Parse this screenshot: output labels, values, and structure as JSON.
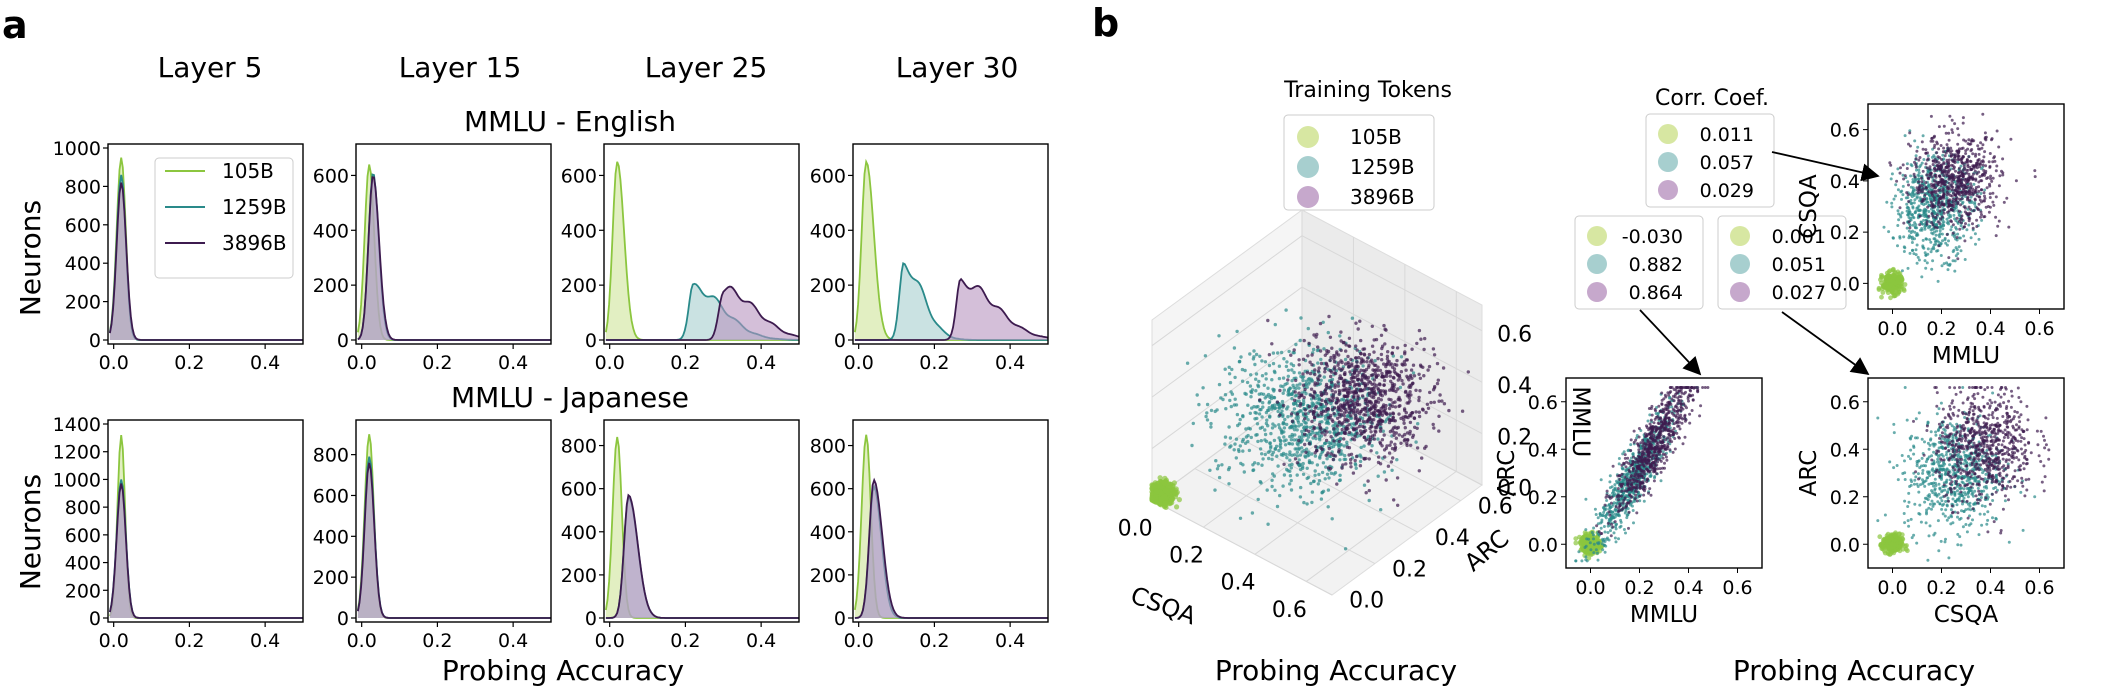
{
  "panels": {
    "a": "a",
    "b": "b"
  },
  "colors": {
    "s105": "#8cc63f",
    "s1259": "#2a8a8a",
    "s3896": "#3d1b4f",
    "f105": "#cfe59a",
    "f1259": "#a7cfcf",
    "f3896": "#b895bf"
  },
  "chart_data": [
    {
      "type": "area",
      "title": "MMLU - English",
      "column_titles": [
        "Layer 5",
        "Layer 15",
        "Layer 25",
        "Layer 30"
      ],
      "ylabel": "Neurons",
      "xlabel": "Probing Accuracy",
      "xlim": [
        0,
        0.5
      ],
      "xticks": [
        "0.0",
        "0.2",
        "0.4"
      ],
      "legend": [
        "105B",
        "1259B",
        "3896B"
      ],
      "legend_position": "upper right of Layer 5 subplot",
      "subplots": [
        {
          "layer": "Layer 5",
          "ylim": [
            0,
            1000
          ],
          "yticks": [
            "0",
            "200",
            "400",
            "600",
            "800",
            "1000"
          ],
          "series": [
            {
              "name": "105B",
              "peak_x": 0.02,
              "peak_y": 950,
              "width": 0.012
            },
            {
              "name": "1259B",
              "peak_x": 0.02,
              "peak_y": 860,
              "width": 0.012
            },
            {
              "name": "3896B",
              "peak_x": 0.02,
              "peak_y": 820,
              "width": 0.013
            }
          ]
        },
        {
          "layer": "Layer 15",
          "ylim": [
            0,
            700
          ],
          "yticks": [
            "0",
            "200",
            "400",
            "600"
          ],
          "series": [
            {
              "name": "105B",
              "peak_x": 0.02,
              "peak_y": 640,
              "width": 0.013
            },
            {
              "name": "1259B",
              "peak_x": 0.03,
              "peak_y": 610,
              "width": 0.015
            },
            {
              "name": "3896B",
              "peak_x": 0.03,
              "peak_y": 600,
              "width": 0.016
            }
          ]
        },
        {
          "layer": "Layer 25",
          "ylim": [
            0,
            700
          ],
          "yticks": [
            "0",
            "200",
            "400",
            "600"
          ],
          "series": [
            {
              "name": "105B",
              "peak_x": 0.02,
              "peak_y": 650,
              "width": 0.018
            },
            {
              "name": "1259B",
              "peak_x": 0.22,
              "peak_y": 190,
              "width": 0.08
            },
            {
              "name": "3896B",
              "peak_x": 0.3,
              "peak_y": 185,
              "width": 0.085
            }
          ]
        },
        {
          "layer": "Layer 30",
          "ylim": [
            0,
            700
          ],
          "yticks": [
            "0",
            "200",
            "400",
            "600"
          ],
          "series": [
            {
              "name": "105B",
              "peak_x": 0.02,
              "peak_y": 650,
              "width": 0.02
            },
            {
              "name": "1259B",
              "peak_x": 0.12,
              "peak_y": 270,
              "width": 0.05
            },
            {
              "name": "3896B",
              "peak_x": 0.27,
              "peak_y": 210,
              "width": 0.09
            }
          ]
        }
      ]
    },
    {
      "type": "area",
      "title": "MMLU - Japanese",
      "ylabel": "Neurons",
      "xlabel": "Probing Accuracy",
      "xlim": [
        0,
        0.5
      ],
      "xticks": [
        "0.0",
        "0.2",
        "0.4"
      ],
      "subplots": [
        {
          "layer": "Layer 5",
          "ylim": [
            0,
            1400
          ],
          "yticks": [
            "0",
            "200",
            "400",
            "600",
            "800",
            "1000",
            "1200",
            "1400"
          ],
          "series": [
            {
              "name": "105B",
              "peak_x": 0.02,
              "peak_y": 1320,
              "width": 0.01
            },
            {
              "name": "1259B",
              "peak_x": 0.02,
              "peak_y": 1000,
              "width": 0.012
            },
            {
              "name": "3896B",
              "peak_x": 0.02,
              "peak_y": 970,
              "width": 0.012
            }
          ]
        },
        {
          "layer": "Layer 15",
          "ylim": [
            0,
            950
          ],
          "yticks": [
            "0",
            "200",
            "400",
            "600",
            "800"
          ],
          "series": [
            {
              "name": "105B",
              "peak_x": 0.02,
              "peak_y": 900,
              "width": 0.012
            },
            {
              "name": "1259B",
              "peak_x": 0.02,
              "peak_y": 790,
              "width": 0.013
            },
            {
              "name": "3896B",
              "peak_x": 0.02,
              "peak_y": 760,
              "width": 0.013
            }
          ]
        },
        {
          "layer": "Layer 25",
          "ylim": [
            0,
            900
          ],
          "yticks": [
            "0",
            "200",
            "400",
            "600",
            "800"
          ],
          "series": [
            {
              "name": "105B",
              "peak_x": 0.02,
              "peak_y": 840,
              "width": 0.012
            },
            {
              "name": "1259B",
              "peak_x": 0.05,
              "peak_y": 560,
              "width": 0.024
            },
            {
              "name": "3896B",
              "peak_x": 0.05,
              "peak_y": 570,
              "width": 0.024
            }
          ]
        },
        {
          "layer": "Layer 30",
          "ylim": [
            0,
            900
          ],
          "yticks": [
            "0",
            "200",
            "400",
            "600",
            "800"
          ],
          "series": [
            {
              "name": "105B",
              "peak_x": 0.02,
              "peak_y": 850,
              "width": 0.012
            },
            {
              "name": "1259B",
              "peak_x": 0.04,
              "peak_y": 610,
              "width": 0.02
            },
            {
              "name": "3896B",
              "peak_x": 0.04,
              "peak_y": 640,
              "width": 0.022
            }
          ]
        }
      ]
    },
    {
      "type": "scatter",
      "subtype": "3d",
      "legend_title": "Training Tokens",
      "legend": [
        "105B",
        "1259B",
        "3896B"
      ],
      "axes": {
        "x": "CSQA",
        "y": "ARC",
        "z": "MMLU"
      },
      "xticks": [
        "0.0",
        "0.2",
        "0.4",
        "0.6"
      ],
      "yticks": [
        "0.0",
        "0.2",
        "0.4",
        "0.6"
      ],
      "zticks": [
        "0.0",
        "0.2",
        "0.4",
        "0.6"
      ],
      "xlabel": "Probing Accuracy",
      "clusters": [
        {
          "name": "105B",
          "center": [
            0.02,
            0.02,
            0.02
          ],
          "spread": 0.02
        },
        {
          "name": "1259B",
          "center": [
            0.3,
            0.35,
            0.25
          ],
          "spread": 0.12
        },
        {
          "name": "3896B",
          "center": [
            0.45,
            0.45,
            0.35
          ],
          "spread": 0.1
        }
      ]
    },
    {
      "type": "scatter",
      "xlabel": "MMLU",
      "ylabel": "CSQA",
      "xticks": [
        "0.0",
        "0.2",
        "0.4",
        "0.6"
      ],
      "yticks": [
        "0.0",
        "0.2",
        "0.4",
        "0.6"
      ],
      "xlim": [
        -0.1,
        0.7
      ],
      "ylim": [
        -0.1,
        0.7
      ],
      "clusters": [
        {
          "name": "105B",
          "center": [
            0.0,
            0.0
          ],
          "spread": [
            0.02,
            0.02
          ],
          "corr": 0.011
        },
        {
          "name": "1259B",
          "center": [
            0.17,
            0.3
          ],
          "spread": [
            0.08,
            0.1
          ],
          "corr": 0.057
        },
        {
          "name": "3896B",
          "center": [
            0.26,
            0.4
          ],
          "spread": [
            0.09,
            0.09
          ],
          "corr": 0.029
        }
      ]
    },
    {
      "type": "scatter",
      "xlabel": "MMLU",
      "ylabel": "ARC",
      "xticks": [
        "0.0",
        "0.2",
        "0.4",
        "0.6"
      ],
      "yticks": [
        "0.0",
        "0.2",
        "0.4",
        "0.6"
      ],
      "xlim": [
        -0.1,
        0.7
      ],
      "ylim": [
        -0.1,
        0.7
      ],
      "clusters": [
        {
          "name": "105B",
          "center": [
            0.0,
            0.0
          ],
          "spread": [
            0.02,
            0.02
          ],
          "corr": -0.03
        },
        {
          "name": "1259B",
          "center": [
            0.17,
            0.27
          ],
          "spread": [
            0.08,
            0.14
          ],
          "corr": 0.882
        },
        {
          "name": "3896B",
          "center": [
            0.26,
            0.42
          ],
          "spread": [
            0.08,
            0.14
          ],
          "corr": 0.864
        }
      ]
    },
    {
      "type": "scatter",
      "xlabel": "CSQA",
      "ylabel": "ARC",
      "xticks": [
        "0.0",
        "0.2",
        "0.4",
        "0.6"
      ],
      "yticks": [
        "0.0",
        "0.2",
        "0.4",
        "0.6"
      ],
      "xlim": [
        -0.1,
        0.7
      ],
      "ylim": [
        -0.1,
        0.7
      ],
      "clusters": [
        {
          "name": "105B",
          "center": [
            0.0,
            0.0
          ],
          "spread": [
            0.02,
            0.02
          ],
          "corr": 0.001
        },
        {
          "name": "1259B",
          "center": [
            0.25,
            0.3
          ],
          "spread": [
            0.1,
            0.12
          ],
          "corr": 0.051
        },
        {
          "name": "3896B",
          "center": [
            0.38,
            0.42
          ],
          "spread": [
            0.1,
            0.12
          ],
          "corr": 0.027
        }
      ]
    }
  ],
  "corr_boxes": {
    "title": "Corr. Coef.",
    "top": [
      "0.011",
      "0.057",
      "0.029"
    ],
    "left": [
      "-0.030",
      "0.882",
      "0.864"
    ],
    "right": [
      "0.001",
      "0.051",
      "0.027"
    ]
  },
  "b_xlabel_3d": "Probing Accuracy",
  "b_xlabel_2d": "Probing Accuracy"
}
